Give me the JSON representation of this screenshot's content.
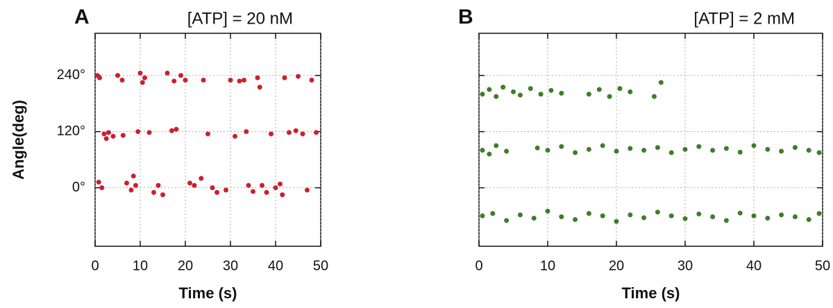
{
  "chart_data": [
    {
      "type": "scatter",
      "label": "A",
      "title": "[ATP] = 20 nM",
      "ylabel": "Angle(deg)",
      "xlabel": "Time (s)",
      "color": "#cc1f2e",
      "grid": true,
      "show_ytick_labels": true,
      "xlim": [
        0,
        50
      ],
      "ylim": [
        -125,
        330
      ],
      "xticks": [
        0,
        10,
        20,
        30,
        40,
        50
      ],
      "yticks": [
        {
          "value": 0,
          "label": "0°"
        },
        {
          "value": 120,
          "label": "120°"
        },
        {
          "value": 240,
          "label": "240°"
        }
      ],
      "x": [
        0.5,
        1,
        2,
        3,
        4,
        5,
        6,
        6.2,
        7,
        8,
        9,
        10,
        11,
        12,
        13,
        14,
        15,
        16,
        17,
        18,
        19,
        20,
        21,
        22,
        24,
        25,
        26,
        27,
        29,
        31,
        32,
        33,
        34,
        35,
        36,
        37,
        38,
        39,
        40,
        41,
        42,
        43,
        45,
        46,
        47,
        48,
        49,
        1.5,
        2.5,
        8.5,
        9.5,
        10.5,
        17.5,
        23.5,
        30,
        33.5,
        36.5,
        44.5,
        41.5,
        0.8
      ],
      "values": [
        240,
        235,
        115,
        118,
        110,
        240,
        230,
        112,
        10,
        -5,
        5,
        245,
        235,
        118,
        -10,
        5,
        -15,
        245,
        122,
        125,
        240,
        230,
        10,
        5,
        230,
        115,
        0,
        -10,
        -5,
        110,
        228,
        230,
        5,
        -8,
        235,
        5,
        -10,
        115,
        0,
        8,
        235,
        118,
        238,
        115,
        -5,
        230,
        118,
        0,
        105,
        25,
        120,
        225,
        228,
        20,
        230,
        120,
        215,
        122,
        -15,
        12
      ]
    },
    {
      "type": "scatter",
      "label": "B",
      "title": "[ATP] = 2 mM",
      "xlabel": "Time (s)",
      "color": "#3f7d28",
      "grid": true,
      "show_ytick_labels": false,
      "xlim": [
        0,
        50
      ],
      "ylim": [
        -125,
        330
      ],
      "xticks": [
        0,
        10,
        20,
        30,
        40,
        50
      ],
      "yticks": [
        {
          "value": 0,
          "label": "0°"
        },
        {
          "value": 120,
          "label": "120°"
        },
        {
          "value": 240,
          "label": "240°"
        }
      ],
      "x": [
        0.5,
        1.5,
        2.5,
        3.5,
        5,
        6,
        7.5,
        9,
        10.5,
        12,
        16,
        17.5,
        19,
        20.5,
        22,
        25.5,
        26.5,
        0.5,
        1.5,
        2.5,
        4,
        8.5,
        10,
        12,
        14,
        16,
        18,
        20,
        22,
        24,
        26,
        28,
        30,
        32,
        34,
        36,
        38,
        40,
        42,
        44,
        46,
        48,
        49.5,
        0.5,
        2,
        4,
        6,
        8,
        10,
        12,
        14,
        16,
        18,
        20,
        22,
        24,
        26,
        28,
        30,
        32,
        34,
        36,
        38,
        40,
        42,
        44,
        46,
        48,
        49.5
      ],
      "values": [
        200,
        210,
        195,
        215,
        205,
        198,
        212,
        200,
        208,
        202,
        200,
        210,
        195,
        212,
        205,
        195,
        225,
        80,
        72,
        90,
        78,
        85,
        80,
        88,
        75,
        82,
        90,
        78,
        84,
        80,
        86,
        75,
        82,
        88,
        80,
        84,
        76,
        90,
        82,
        78,
        86,
        80,
        75,
        -60,
        -55,
        -70,
        -58,
        -65,
        -50,
        -62,
        -68,
        -55,
        -60,
        -72,
        -58,
        -64,
        -52,
        -60,
        -66,
        -56,
        -62,
        -70,
        -54,
        -60,
        -65,
        -58,
        -62,
        -68,
        -55
      ]
    }
  ]
}
